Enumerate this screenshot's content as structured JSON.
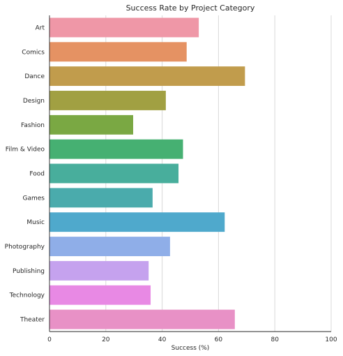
{
  "chart_data": {
    "type": "bar",
    "orientation": "horizontal",
    "title": "Success Rate by Project Category",
    "xlabel": "Success (%)",
    "ylabel": "",
    "xlim": [
      0,
      100
    ],
    "xticks": [
      0,
      20,
      40,
      60,
      80,
      100
    ],
    "grid": "vertical",
    "categories": [
      "Art",
      "Comics",
      "Dance",
      "Design",
      "Fashion",
      "Film & Video",
      "Food",
      "Games",
      "Music",
      "Photography",
      "Publishing",
      "Technology",
      "Theater"
    ],
    "values": [
      53.0,
      48.7,
      69.4,
      41.3,
      29.7,
      47.4,
      45.8,
      36.6,
      62.2,
      42.8,
      35.2,
      35.9,
      65.8
    ],
    "colors": [
      "#ef97a7",
      "#e59263",
      "#c19c4c",
      "#a1a042",
      "#7aa843",
      "#46b072",
      "#48ae9c",
      "#4aabac",
      "#4fa9cc",
      "#8faee8",
      "#c5a2ee",
      "#e889e4",
      "#e891c6"
    ]
  }
}
